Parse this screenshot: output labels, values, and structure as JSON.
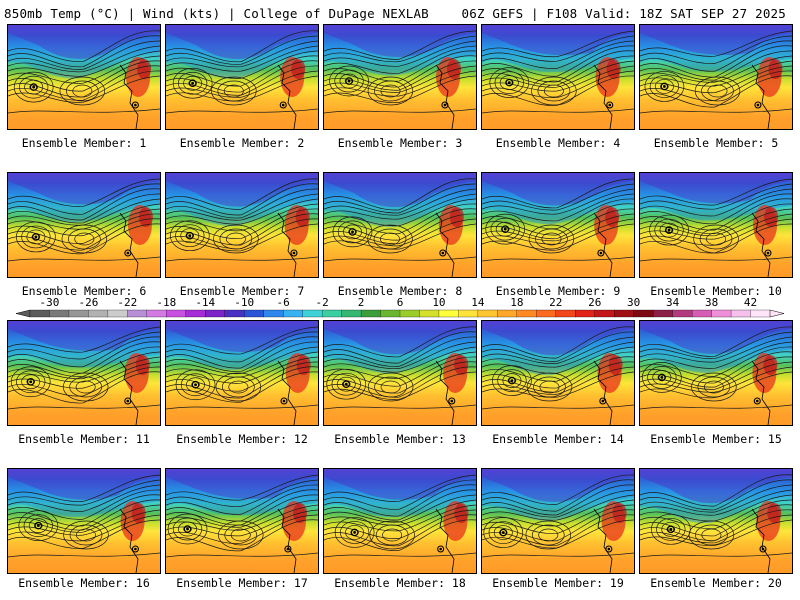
{
  "header": {
    "title_left": "850mb Temp (°C) | Wind (kts) | College of DuPage NEXLAB",
    "title_right": "06Z GEFS | F108 Valid: 18Z SAT SEP 27 2025"
  },
  "panels": [
    {
      "member": 1,
      "label": "Ensemble Member: 1"
    },
    {
      "member": 2,
      "label": "Ensemble Member: 2"
    },
    {
      "member": 3,
      "label": "Ensemble Member: 3"
    },
    {
      "member": 4,
      "label": "Ensemble Member: 4"
    },
    {
      "member": 5,
      "label": "Ensemble Member: 5"
    },
    {
      "member": 6,
      "label": "Ensemble Member: 6"
    },
    {
      "member": 7,
      "label": "Ensemble Member: 7"
    },
    {
      "member": 8,
      "label": "Ensemble Member: 8"
    },
    {
      "member": 9,
      "label": "Ensemble Member: 9"
    },
    {
      "member": 10,
      "label": "Ensemble Member: 10"
    },
    {
      "member": 11,
      "label": "Ensemble Member: 11"
    },
    {
      "member": 12,
      "label": "Ensemble Member: 12"
    },
    {
      "member": 13,
      "label": "Ensemble Member: 13"
    },
    {
      "member": 14,
      "label": "Ensemble Member: 14"
    },
    {
      "member": 15,
      "label": "Ensemble Member: 15"
    },
    {
      "member": 16,
      "label": "Ensemble Member: 16"
    },
    {
      "member": 17,
      "label": "Ensemble Member: 17"
    },
    {
      "member": 18,
      "label": "Ensemble Member: 18"
    },
    {
      "member": 19,
      "label": "Ensemble Member: 19"
    },
    {
      "member": 20,
      "label": "Ensemble Member: 20"
    }
  ],
  "colorbar": {
    "unit": "°C",
    "tick_labels": [
      "-30",
      "-26",
      "-22",
      "-18",
      "-14",
      "-10",
      "-6",
      "-2",
      "2",
      "6",
      "10",
      "14",
      "18",
      "22",
      "26",
      "30",
      "34",
      "38",
      "42"
    ],
    "min": -32,
    "max": 44,
    "step": 2,
    "colors": [
      "#5c5c5c",
      "#7a7a7a",
      "#979797",
      "#b2b2b2",
      "#cccccc",
      "#b88fd6",
      "#d37be3",
      "#c94fe0",
      "#a52cd6",
      "#7b24c8",
      "#4a2fc4",
      "#2b55d8",
      "#2f86ec",
      "#36b2f2",
      "#3fd3d9",
      "#3ccfa1",
      "#36b873",
      "#3c9e3a",
      "#6ab52f",
      "#9ccc2a",
      "#d4e02b",
      "#ffff3c",
      "#ffe23a",
      "#ffc531",
      "#ffa72a",
      "#ff8a24",
      "#fc6b1e",
      "#f2451a",
      "#e02219",
      "#c4161a",
      "#a00f16",
      "#7d0a12",
      "#8c1f48",
      "#b43a80",
      "#d65cb4",
      "#ee8fd8",
      "#f5c1ec",
      "#ffe4f8"
    ]
  }
}
